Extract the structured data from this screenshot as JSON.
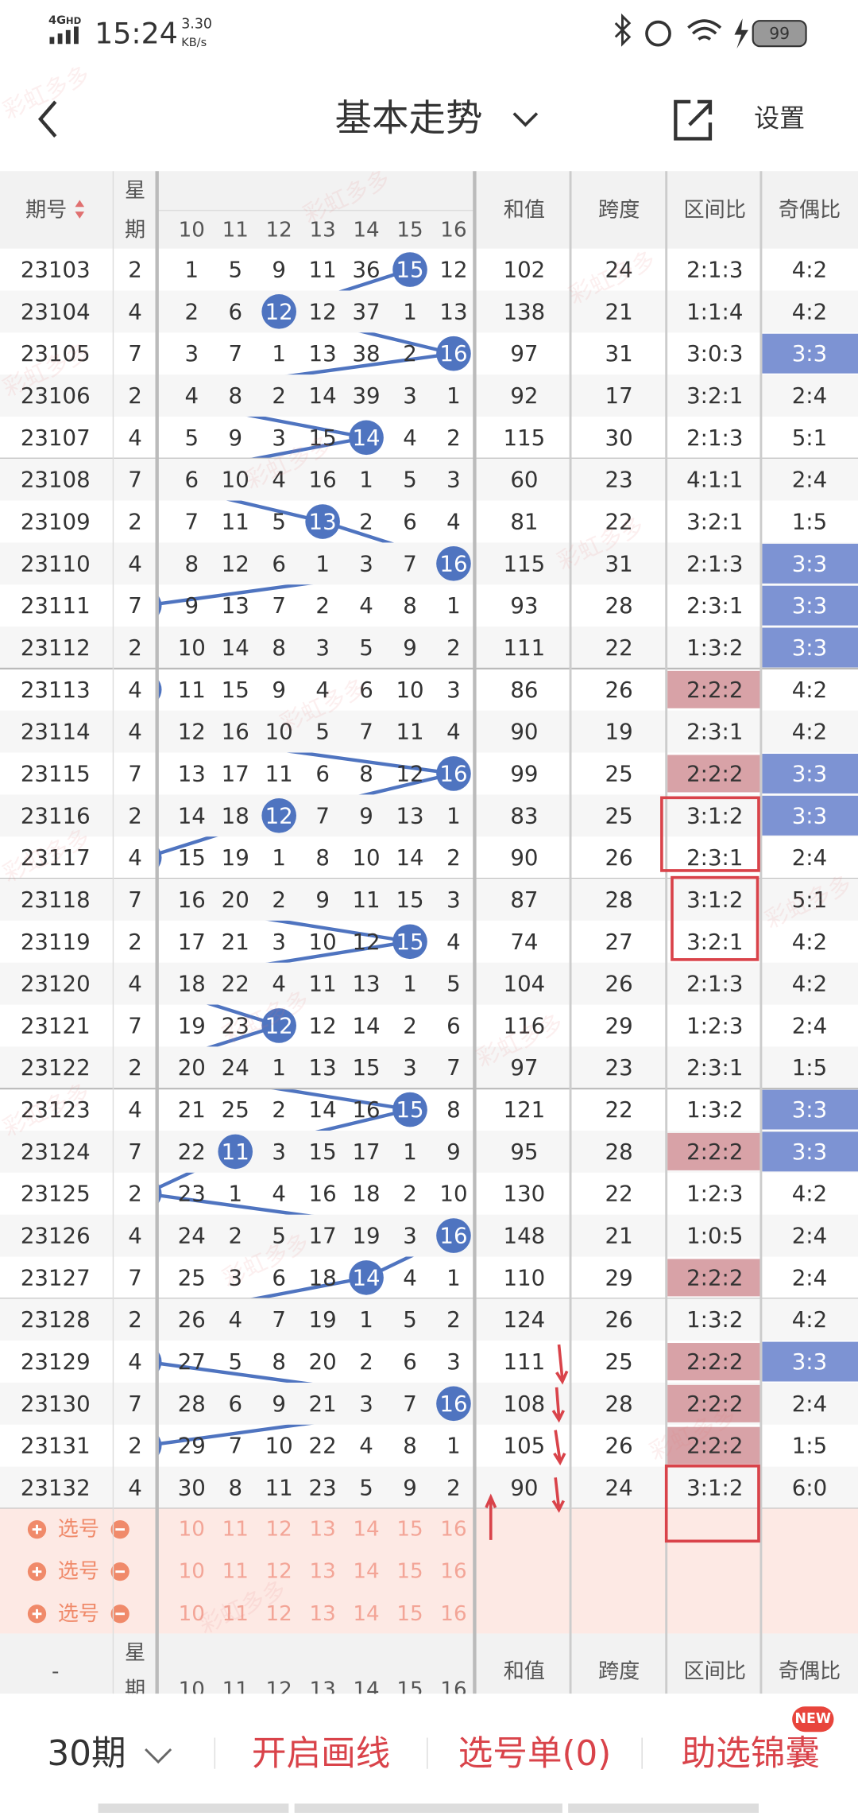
{
  "status_bar": {
    "network": "4G",
    "network_sub": "HD",
    "time": "15:24",
    "speed": "3.30",
    "speed_unit": "KB/s",
    "battery": "99"
  },
  "header": {
    "title": "基本走势",
    "settings": "设置"
  },
  "table": {
    "columns": {
      "period": "期号",
      "weekday": [
        "星",
        "期"
      ],
      "numbers": [
        "10",
        "11",
        "12",
        "13",
        "14",
        "15",
        "16"
      ],
      "sum": "和值",
      "span": "跨度",
      "ratio": "区间比",
      "odd_even": "奇偶比"
    },
    "rows": [
      {
        "period": "23103",
        "weekday": "2",
        "numbers": [
          "1",
          "5",
          "9",
          "11",
          "36",
          "15",
          "12"
        ],
        "hit": 5,
        "sum": "102",
        "span": "24",
        "ratio": "2:1:3",
        "odd_even": "4:2"
      },
      {
        "period": "23104",
        "weekday": "4",
        "numbers": [
          "2",
          "6",
          "12",
          "12",
          "37",
          "1",
          "13"
        ],
        "hit": 2,
        "sum": "138",
        "span": "21",
        "ratio": "1:1:4",
        "odd_even": "4:2"
      },
      {
        "period": "23105",
        "weekday": "7",
        "numbers": [
          "3",
          "7",
          "1",
          "13",
          "38",
          "2",
          "16"
        ],
        "hit": 6,
        "sum": "97",
        "span": "31",
        "ratio": "3:0:3",
        "odd_even": "3:3",
        "odd_even_mark": true
      },
      {
        "period": "23106",
        "weekday": "2",
        "numbers": [
          "4",
          "8",
          "2",
          "14",
          "39",
          "3",
          "1"
        ],
        "hit": null,
        "sum": "92",
        "span": "17",
        "ratio": "3:2:1",
        "odd_even": "2:4"
      },
      {
        "period": "23107",
        "weekday": "4",
        "numbers": [
          "5",
          "9",
          "3",
          "15",
          "14",
          "4",
          "2"
        ],
        "hit": 4,
        "sum": "115",
        "span": "30",
        "ratio": "2:1:3",
        "odd_even": "5:1"
      },
      {
        "period": "23108",
        "weekday": "7",
        "numbers": [
          "6",
          "10",
          "4",
          "16",
          "1",
          "5",
          "3"
        ],
        "hit": null,
        "sum": "60",
        "span": "23",
        "ratio": "4:1:1",
        "odd_even": "2:4"
      },
      {
        "period": "23109",
        "weekday": "2",
        "numbers": [
          "7",
          "11",
          "5",
          "13",
          "2",
          "6",
          "4"
        ],
        "hit": 3,
        "sum": "81",
        "span": "22",
        "ratio": "3:2:1",
        "odd_even": "1:5"
      },
      {
        "period": "23110",
        "weekday": "4",
        "numbers": [
          "8",
          "12",
          "6",
          "1",
          "3",
          "7",
          "16"
        ],
        "hit": 6,
        "sum": "115",
        "span": "31",
        "ratio": "2:1:3",
        "odd_even": "3:3",
        "odd_even_mark": true
      },
      {
        "period": "23111",
        "weekday": "7",
        "numbers": [
          "9",
          "13",
          "7",
          "2",
          "4",
          "8",
          "1"
        ],
        "hit": null,
        "sum": "93",
        "span": "28",
        "ratio": "2:3:1",
        "odd_even": "3:3",
        "odd_even_mark": true
      },
      {
        "period": "23112",
        "weekday": "2",
        "numbers": [
          "10",
          "14",
          "8",
          "3",
          "5",
          "9",
          "2"
        ],
        "hit": null,
        "sum": "111",
        "span": "22",
        "ratio": "1:3:2",
        "odd_even": "3:3",
        "odd_even_mark": true
      },
      {
        "period": "23113",
        "weekday": "4",
        "numbers": [
          "11",
          "15",
          "9",
          "4",
          "6",
          "10",
          "3"
        ],
        "hit": null,
        "sum": "86",
        "span": "26",
        "ratio": "2:2:2",
        "ratio_mark": true,
        "odd_even": "4:2"
      },
      {
        "period": "23114",
        "weekday": "4",
        "numbers": [
          "12",
          "16",
          "10",
          "5",
          "7",
          "11",
          "4"
        ],
        "hit": null,
        "sum": "90",
        "span": "19",
        "ratio": "2:3:1",
        "odd_even": "4:2"
      },
      {
        "period": "23115",
        "weekday": "7",
        "numbers": [
          "13",
          "17",
          "11",
          "6",
          "8",
          "12",
          "16"
        ],
        "hit": 6,
        "sum": "99",
        "span": "25",
        "ratio": "2:2:2",
        "ratio_mark": true,
        "odd_even": "3:3",
        "odd_even_mark": true
      },
      {
        "period": "23116",
        "weekday": "2",
        "numbers": [
          "14",
          "18",
          "12",
          "7",
          "9",
          "13",
          "1"
        ],
        "hit": 2,
        "sum": "83",
        "span": "25",
        "ratio": "3:1:2",
        "odd_even": "3:3",
        "odd_even_mark": true
      },
      {
        "period": "23117",
        "weekday": "4",
        "numbers": [
          "15",
          "19",
          "1",
          "8",
          "10",
          "14",
          "2"
        ],
        "hit": null,
        "sum": "90",
        "span": "26",
        "ratio": "2:3:1",
        "odd_even": "2:4"
      },
      {
        "period": "23118",
        "weekday": "7",
        "numbers": [
          "16",
          "20",
          "2",
          "9",
          "11",
          "15",
          "3"
        ],
        "hit": null,
        "sum": "87",
        "span": "28",
        "ratio": "3:1:2",
        "odd_even": "5:1"
      },
      {
        "period": "23119",
        "weekday": "2",
        "numbers": [
          "17",
          "21",
          "3",
          "10",
          "12",
          "15",
          "4"
        ],
        "hit": 5,
        "sum": "74",
        "span": "27",
        "ratio": "3:2:1",
        "odd_even": "4:2"
      },
      {
        "period": "23120",
        "weekday": "4",
        "numbers": [
          "18",
          "22",
          "4",
          "11",
          "13",
          "1",
          "5"
        ],
        "hit": null,
        "sum": "104",
        "span": "26",
        "ratio": "2:1:3",
        "odd_even": "4:2"
      },
      {
        "period": "23121",
        "weekday": "7",
        "numbers": [
          "19",
          "23",
          "12",
          "12",
          "14",
          "2",
          "6"
        ],
        "hit": 2,
        "sum": "116",
        "span": "29",
        "ratio": "1:2:3",
        "odd_even": "2:4"
      },
      {
        "period": "23122",
        "weekday": "2",
        "numbers": [
          "20",
          "24",
          "1",
          "13",
          "15",
          "3",
          "7"
        ],
        "hit": null,
        "sum": "97",
        "span": "23",
        "ratio": "2:3:1",
        "odd_even": "1:5"
      },
      {
        "period": "23123",
        "weekday": "4",
        "numbers": [
          "21",
          "25",
          "2",
          "14",
          "16",
          "15",
          "8"
        ],
        "hit": 5,
        "sum": "121",
        "span": "22",
        "ratio": "1:3:2",
        "odd_even": "3:3",
        "odd_even_mark": true
      },
      {
        "period": "23124",
        "weekday": "7",
        "numbers": [
          "22",
          "11",
          "3",
          "15",
          "17",
          "1",
          "9"
        ],
        "hit": 1,
        "sum": "95",
        "span": "28",
        "ratio": "2:2:2",
        "ratio_mark": true,
        "odd_even": "3:3",
        "odd_even_mark": true
      },
      {
        "period": "23125",
        "weekday": "2",
        "numbers": [
          "23",
          "1",
          "4",
          "16",
          "18",
          "2",
          "10"
        ],
        "hit": null,
        "sum": "130",
        "span": "22",
        "ratio": "1:2:3",
        "odd_even": "4:2"
      },
      {
        "period": "23126",
        "weekday": "4",
        "numbers": [
          "24",
          "2",
          "5",
          "17",
          "19",
          "3",
          "16"
        ],
        "hit": 6,
        "sum": "148",
        "span": "21",
        "ratio": "1:0:5",
        "odd_even": "2:4"
      },
      {
        "period": "23127",
        "weekday": "7",
        "numbers": [
          "25",
          "3",
          "6",
          "18",
          "14",
          "4",
          "1"
        ],
        "hit": 4,
        "sum": "110",
        "span": "29",
        "ratio": "2:2:2",
        "ratio_mark": true,
        "odd_even": "2:4"
      },
      {
        "period": "23128",
        "weekday": "2",
        "numbers": [
          "26",
          "4",
          "7",
          "19",
          "1",
          "5",
          "2"
        ],
        "hit": null,
        "sum": "124",
        "span": "26",
        "ratio": "1:3:2",
        "odd_even": "4:2"
      },
      {
        "period": "23129",
        "weekday": "4",
        "numbers": [
          "27",
          "5",
          "8",
          "20",
          "2",
          "6",
          "3"
        ],
        "hit": null,
        "sum": "111",
        "span": "25",
        "ratio": "2:2:2",
        "ratio_mark": true,
        "odd_even": "3:3",
        "odd_even_mark": true
      },
      {
        "period": "23130",
        "weekday": "7",
        "numbers": [
          "28",
          "6",
          "9",
          "21",
          "3",
          "7",
          "16"
        ],
        "hit": 6,
        "sum": "108",
        "span": "28",
        "ratio": "2:2:2",
        "ratio_mark": true,
        "odd_even": "2:4"
      },
      {
        "period": "23131",
        "weekday": "2",
        "numbers": [
          "29",
          "7",
          "10",
          "22",
          "4",
          "8",
          "1"
        ],
        "hit": null,
        "sum": "105",
        "span": "26",
        "ratio": "2:2:2",
        "ratio_mark": true,
        "odd_even": "1:5"
      },
      {
        "period": "23132",
        "weekday": "4",
        "numbers": [
          "30",
          "8",
          "11",
          "23",
          "5",
          "9",
          "2"
        ],
        "hit": null,
        "sum": "90",
        "span": "24",
        "ratio": "3:1:2",
        "odd_even": "6:0"
      }
    ]
  },
  "picker": {
    "label": "选号"
  },
  "footer_header": {
    "period": "-"
  },
  "bottom_bar": {
    "periods": "30期",
    "draw_lines": "开启画线",
    "pick_list": "选号单(0)",
    "tips": "助选锦囊",
    "badge": "NEW"
  },
  "watermark": "彩虹多多"
}
